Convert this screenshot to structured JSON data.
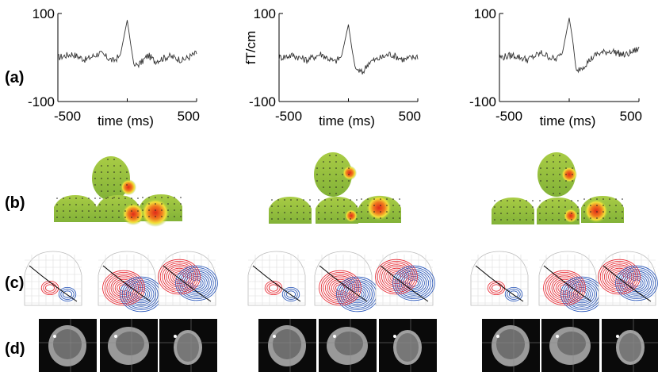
{
  "row_labels": {
    "a": "(a)",
    "b": "(b)",
    "c": "(c)",
    "d": "(d)"
  },
  "shared_ylabel": "fT/cm",
  "colors": {
    "field_green": "#9bc43c",
    "hot_red": "#e02a1a",
    "contour_red": "#e8202a",
    "contour_blue": "#2050b8",
    "mri_bg": "#0a0a0a"
  },
  "icons": {
    "topography": "sensor-helmet-map",
    "mri": "mri-slice"
  },
  "chart_data": [
    {
      "type": "line",
      "title": "",
      "xlabel": "time (ms)",
      "ylabel": "",
      "ytick_labels": [
        "100",
        "-100"
      ],
      "xtick_labels": [
        "-500",
        "500"
      ],
      "xlim": [
        -500,
        500
      ],
      "ylim": [
        -100,
        100
      ],
      "grid": false,
      "series": [
        {
          "x": [
            -500,
            -400,
            -300,
            -200,
            -100,
            -50,
            0,
            25,
            50,
            100,
            150,
            200,
            300,
            400,
            500
          ],
          "values": [
            0,
            8,
            -5,
            10,
            -8,
            5,
            85,
            30,
            -20,
            -12,
            5,
            -8,
            3,
            -6,
            10
          ]
        }
      ]
    },
    {
      "type": "line",
      "title": "",
      "xlabel": "time (ms)",
      "ylabel": "fT/cm",
      "ytick_labels": [
        "100",
        "-100"
      ],
      "xtick_labels": [
        "-500",
        "500"
      ],
      "xlim": [
        -500,
        500
      ],
      "ylim": [
        -100,
        100
      ],
      "grid": false,
      "series": [
        {
          "x": [
            -500,
            -400,
            -300,
            -200,
            -100,
            -50,
            0,
            25,
            50,
            100,
            150,
            200,
            300,
            400,
            500
          ],
          "values": [
            0,
            5,
            -6,
            8,
            -10,
            2,
            75,
            20,
            -25,
            -35,
            -10,
            -5,
            8,
            -5,
            3
          ]
        }
      ]
    },
    {
      "type": "line",
      "title": "",
      "xlabel": "time (ms)",
      "ylabel": "",
      "ytick_labels": [
        "100",
        "-100"
      ],
      "xtick_labels": [
        "-500",
        "500"
      ],
      "xlim": [
        -500,
        500
      ],
      "ylim": [
        -100,
        100
      ],
      "grid": false,
      "series": [
        {
          "x": [
            -500,
            -400,
            -300,
            -200,
            -100,
            -50,
            0,
            25,
            50,
            100,
            150,
            200,
            300,
            400,
            500
          ],
          "values": [
            0,
            5,
            -5,
            10,
            -5,
            8,
            90,
            40,
            -30,
            -20,
            -5,
            8,
            15,
            5,
            20
          ]
        }
      ]
    }
  ]
}
